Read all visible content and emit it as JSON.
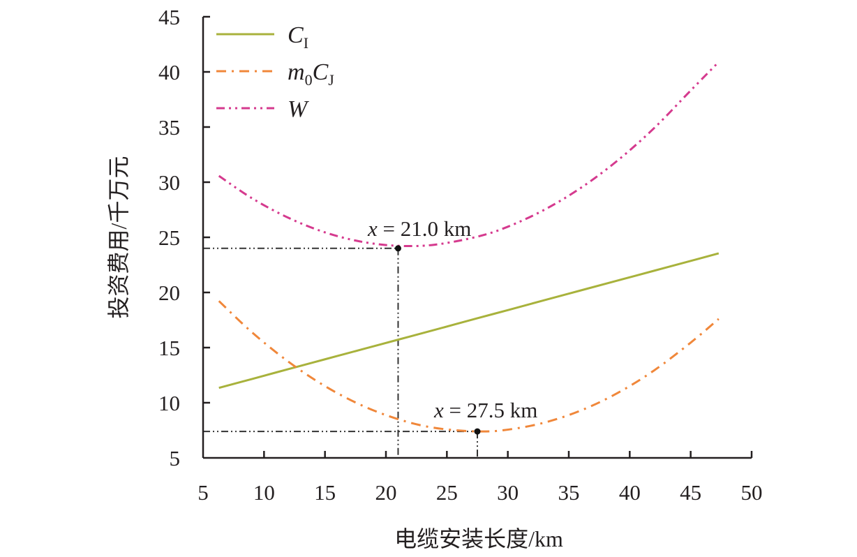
{
  "chart_data": {
    "type": "line",
    "title": "",
    "xlabel": "电缆安装长度/km",
    "ylabel": "投资费用/千万元",
    "xlim": [
      5,
      50
    ],
    "ylim": [
      5,
      45
    ],
    "xticks": [
      5,
      10,
      15,
      20,
      25,
      30,
      35,
      40,
      45,
      50
    ],
    "yticks": [
      5,
      10,
      15,
      20,
      25,
      30,
      35,
      40,
      45
    ],
    "grid": false,
    "legend_position": "top-left",
    "x": [
      6.3,
      9,
      12,
      15,
      18,
      21,
      24,
      27.5,
      30,
      33,
      36,
      39,
      42,
      45,
      47.3
    ],
    "series": [
      {
        "name": "C_I",
        "label_main": "C",
        "label_sub": "I",
        "color": "#a8b23c",
        "style": "solid",
        "values": [
          11.35,
          12.15,
          13.05,
          13.94,
          14.83,
          15.72,
          16.61,
          17.66,
          18.4,
          19.3,
          20.19,
          21.08,
          21.97,
          22.86,
          23.55
        ]
      },
      {
        "name": "m_0C_J",
        "label_main": "m",
        "label_sub": "0",
        "label_main2": "C",
        "label_sub2": "J",
        "color": "#f0873a",
        "style": "dash-dot",
        "values": [
          19.22,
          16.4,
          13.72,
          11.51,
          9.77,
          8.51,
          7.72,
          7.4,
          7.56,
          8.2,
          9.3,
          10.88,
          12.93,
          15.45,
          17.6
        ]
      },
      {
        "name": "W",
        "label_main": "W",
        "color": "#d53a8e",
        "style": "dash-dot-dot",
        "values": [
          30.57,
          28.55,
          26.77,
          25.45,
          24.6,
          24.23,
          24.33,
          25.06,
          25.96,
          27.5,
          29.49,
          31.96,
          34.9,
          38.31,
          40.9
        ]
      }
    ],
    "annotations": [
      {
        "text_var": "x",
        "text_rest": " = 21.0 km",
        "point": [
          21.0,
          24.0
        ],
        "series": "W"
      },
      {
        "text_var": "x",
        "text_rest": " = 27.5 km",
        "point": [
          27.5,
          7.4
        ],
        "series": "m_0C_J"
      }
    ],
    "refline_color": "#333333"
  }
}
